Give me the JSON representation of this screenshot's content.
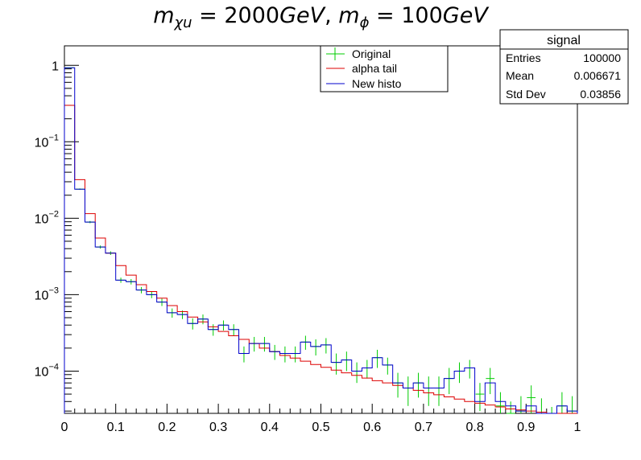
{
  "chart_data": {
    "type": "histogram",
    "title_parts": {
      "m1_base": "m",
      "m1_sub": "χu",
      "eq1": " = 2000",
      "unit1": "GeV",
      "sep": ", ",
      "m2_base": "m",
      "m2_sub": "ϕ",
      "eq2": " = 100",
      "unit2": "GeV"
    },
    "x_axis": {
      "range": [
        0,
        1
      ],
      "tick_labels": [
        "0",
        "0.1",
        "0.2",
        "0.3",
        "0.4",
        "0.5",
        "0.6",
        "0.7",
        "0.8",
        "0.9",
        "1"
      ],
      "tick_values": [
        0,
        0.1,
        0.2,
        0.3,
        0.4,
        0.5,
        0.6,
        0.7,
        0.8,
        0.9,
        1.0
      ]
    },
    "y_axis": {
      "scale": "log",
      "range": [
        2.8e-05,
        1.8
      ],
      "tick_labels": [
        {
          "base": "10",
          "exp": "−4"
        },
        {
          "base": "10",
          "exp": "−3"
        },
        {
          "base": "10",
          "exp": "−2"
        },
        {
          "base": "10",
          "exp": "−1"
        },
        {
          "base": "1",
          "exp": ""
        }
      ],
      "tick_values": [
        0.0001,
        0.001,
        0.01,
        0.1,
        1
      ]
    },
    "bin_count": 50,
    "bin_width": 0.02,
    "legend": {
      "position": "top-center",
      "entries": [
        {
          "label": "Original",
          "color": "#00cc00",
          "style": "marker"
        },
        {
          "label": "alpha tail",
          "color": "#dd0000",
          "style": "line"
        },
        {
          "label": "New histo",
          "color": "#0000cc",
          "style": "line"
        }
      ]
    },
    "stats_box": {
      "title": "signal",
      "rows": [
        {
          "label": "Entries",
          "value": "100000"
        },
        {
          "label": "Mean",
          "value": "0.006671"
        },
        {
          "label": "Std Dev",
          "value": "0.03856"
        }
      ]
    },
    "series": [
      {
        "name": "Original",
        "color": "#00cc00",
        "style": "error-points",
        "values": [
          0.93,
          0.024,
          0.0089,
          0.0042,
          0.0035,
          0.00155,
          0.00148,
          0.00115,
          0.001,
          0.0008,
          0.00058,
          0.00055,
          0.00042,
          0.00048,
          0.00035,
          0.0004,
          0.00035,
          0.00017,
          0.00023,
          0.00023,
          0.00018,
          0.00017,
          0.00017,
          0.00024,
          0.00021,
          0.00022,
          0.00013,
          0.00014,
          0.0001,
          0.00011,
          0.00015,
          0.00012,
          7e-05,
          6e-05,
          7e-05,
          6e-05,
          6e-05,
          8e-05,
          0.0001,
          0.00011,
          5e-05,
          8e-05,
          3.5e-05,
          2.5e-05,
          3e-05,
          4.5e-05,
          2.8e-05,
          2e-05,
          3.5e-05,
          3e-05
        ],
        "errors": [
          0.003,
          0.0005,
          0.0003,
          0.0002,
          0.00019,
          0.00012,
          0.00012,
          0.00011,
          0.0001,
          9e-05,
          8e-05,
          7e-05,
          7e-05,
          7e-05,
          6e-05,
          6e-05,
          6e-05,
          4e-05,
          5e-05,
          5e-05,
          4e-05,
          4e-05,
          4e-05,
          5e-05,
          5e-05,
          5e-05,
          4e-05,
          4e-05,
          3e-05,
          3e-05,
          4e-05,
          3e-05,
          2.5e-05,
          2.5e-05,
          2.5e-05,
          2.5e-05,
          2.5e-05,
          3e-05,
          3e-05,
          3e-05,
          2e-05,
          3e-05,
          1.8e-05,
          1.5e-05,
          1.7e-05,
          2e-05,
          1.6e-05,
          1.4e-05,
          1.8e-05,
          1.7e-05
        ]
      },
      {
        "name": "alpha tail",
        "color": "#dd0000",
        "style": "step",
        "values": [
          0.3,
          0.032,
          0.0115,
          0.0055,
          0.0035,
          0.0024,
          0.0018,
          0.00135,
          0.0011,
          0.0009,
          0.00072,
          0.0006,
          0.00051,
          0.00044,
          0.00038,
          0.00033,
          0.00029,
          0.00026,
          0.00023,
          0.0002,
          0.00018,
          0.00016,
          0.000148,
          0.000135,
          0.000122,
          0.000112,
          0.000103,
          9.5e-05,
          8.8e-05,
          8.1e-05,
          7.5e-05,
          7e-05,
          6.5e-05,
          6e-05,
          5.6e-05,
          5.2e-05,
          4.9e-05,
          4.6e-05,
          4.3e-05,
          4e-05,
          3.8e-05,
          3.6e-05,
          3.4e-05,
          3.2e-05,
          3.1e-05,
          3e-05,
          2.9e-05,
          2.8e-05,
          2.7e-05,
          2.6e-05
        ]
      },
      {
        "name": "New histo",
        "color": "#0000cc",
        "style": "step",
        "values": [
          0.93,
          0.024,
          0.0089,
          0.0042,
          0.0035,
          0.00155,
          0.00148,
          0.00115,
          0.001,
          0.0008,
          0.00058,
          0.00055,
          0.00042,
          0.00048,
          0.00035,
          0.0004,
          0.00035,
          0.00017,
          0.00023,
          0.00023,
          0.00018,
          0.00017,
          0.00017,
          0.00024,
          0.00021,
          0.00022,
          0.00013,
          0.00014,
          0.0001,
          0.00011,
          0.00015,
          0.00012,
          7e-05,
          6e-05,
          7e-05,
          6e-05,
          6e-05,
          8e-05,
          0.0001,
          0.00011,
          4e-05,
          7e-05,
          4e-05,
          3.5e-05,
          3e-05,
          3.5e-05,
          2.8e-05,
          2.8e-05,
          3.5e-05,
          3e-05
        ]
      }
    ]
  }
}
